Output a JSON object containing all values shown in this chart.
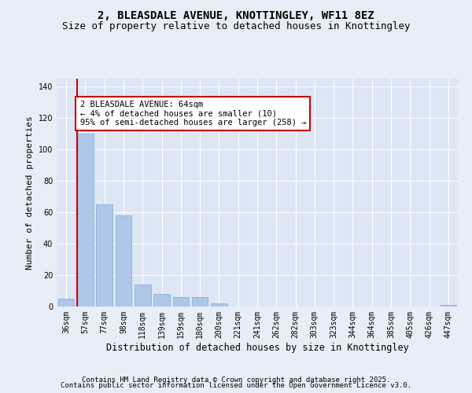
{
  "title_line1": "2, BLEASDALE AVENUE, KNOTTINGLEY, WF11 8EZ",
  "title_line2": "Size of property relative to detached houses in Knottingley",
  "xlabel": "Distribution of detached houses by size in Knottingley",
  "ylabel": "Number of detached properties",
  "categories": [
    "36sqm",
    "57sqm",
    "77sqm",
    "98sqm",
    "118sqm",
    "139sqm",
    "159sqm",
    "180sqm",
    "200sqm",
    "221sqm",
    "241sqm",
    "262sqm",
    "282sqm",
    "303sqm",
    "323sqm",
    "344sqm",
    "364sqm",
    "385sqm",
    "405sqm",
    "426sqm",
    "447sqm"
  ],
  "values": [
    5,
    110,
    65,
    58,
    14,
    8,
    6,
    6,
    2,
    0,
    0,
    0,
    0,
    0,
    0,
    0,
    0,
    0,
    0,
    0,
    1
  ],
  "bar_color": "#aec6e8",
  "bar_edge_color": "#7aafd4",
  "annotation_text": "2 BLEASDALE AVENUE: 64sqm\n← 4% of detached houses are smaller (10)\n95% of semi-detached houses are larger (258) →",
  "annotation_box_color": "#ffffff",
  "annotation_box_edge": "#cc0000",
  "red_line_color": "#cc0000",
  "ylim": [
    0,
    145
  ],
  "yticks": [
    0,
    20,
    40,
    60,
    80,
    100,
    120,
    140
  ],
  "background_color": "#e8eef7",
  "plot_bg_color": "#dce6f5",
  "grid_color": "#ffffff",
  "footer_line1": "Contains HM Land Registry data © Crown copyright and database right 2025.",
  "footer_line2": "Contains public sector information licensed under the Open Government Licence v3.0.",
  "title_fontsize": 10,
  "subtitle_fontsize": 9,
  "tick_fontsize": 7,
  "ylabel_fontsize": 8,
  "xlabel_fontsize": 8.5,
  "annotation_fontsize": 7.5,
  "footer_fontsize": 6.5
}
